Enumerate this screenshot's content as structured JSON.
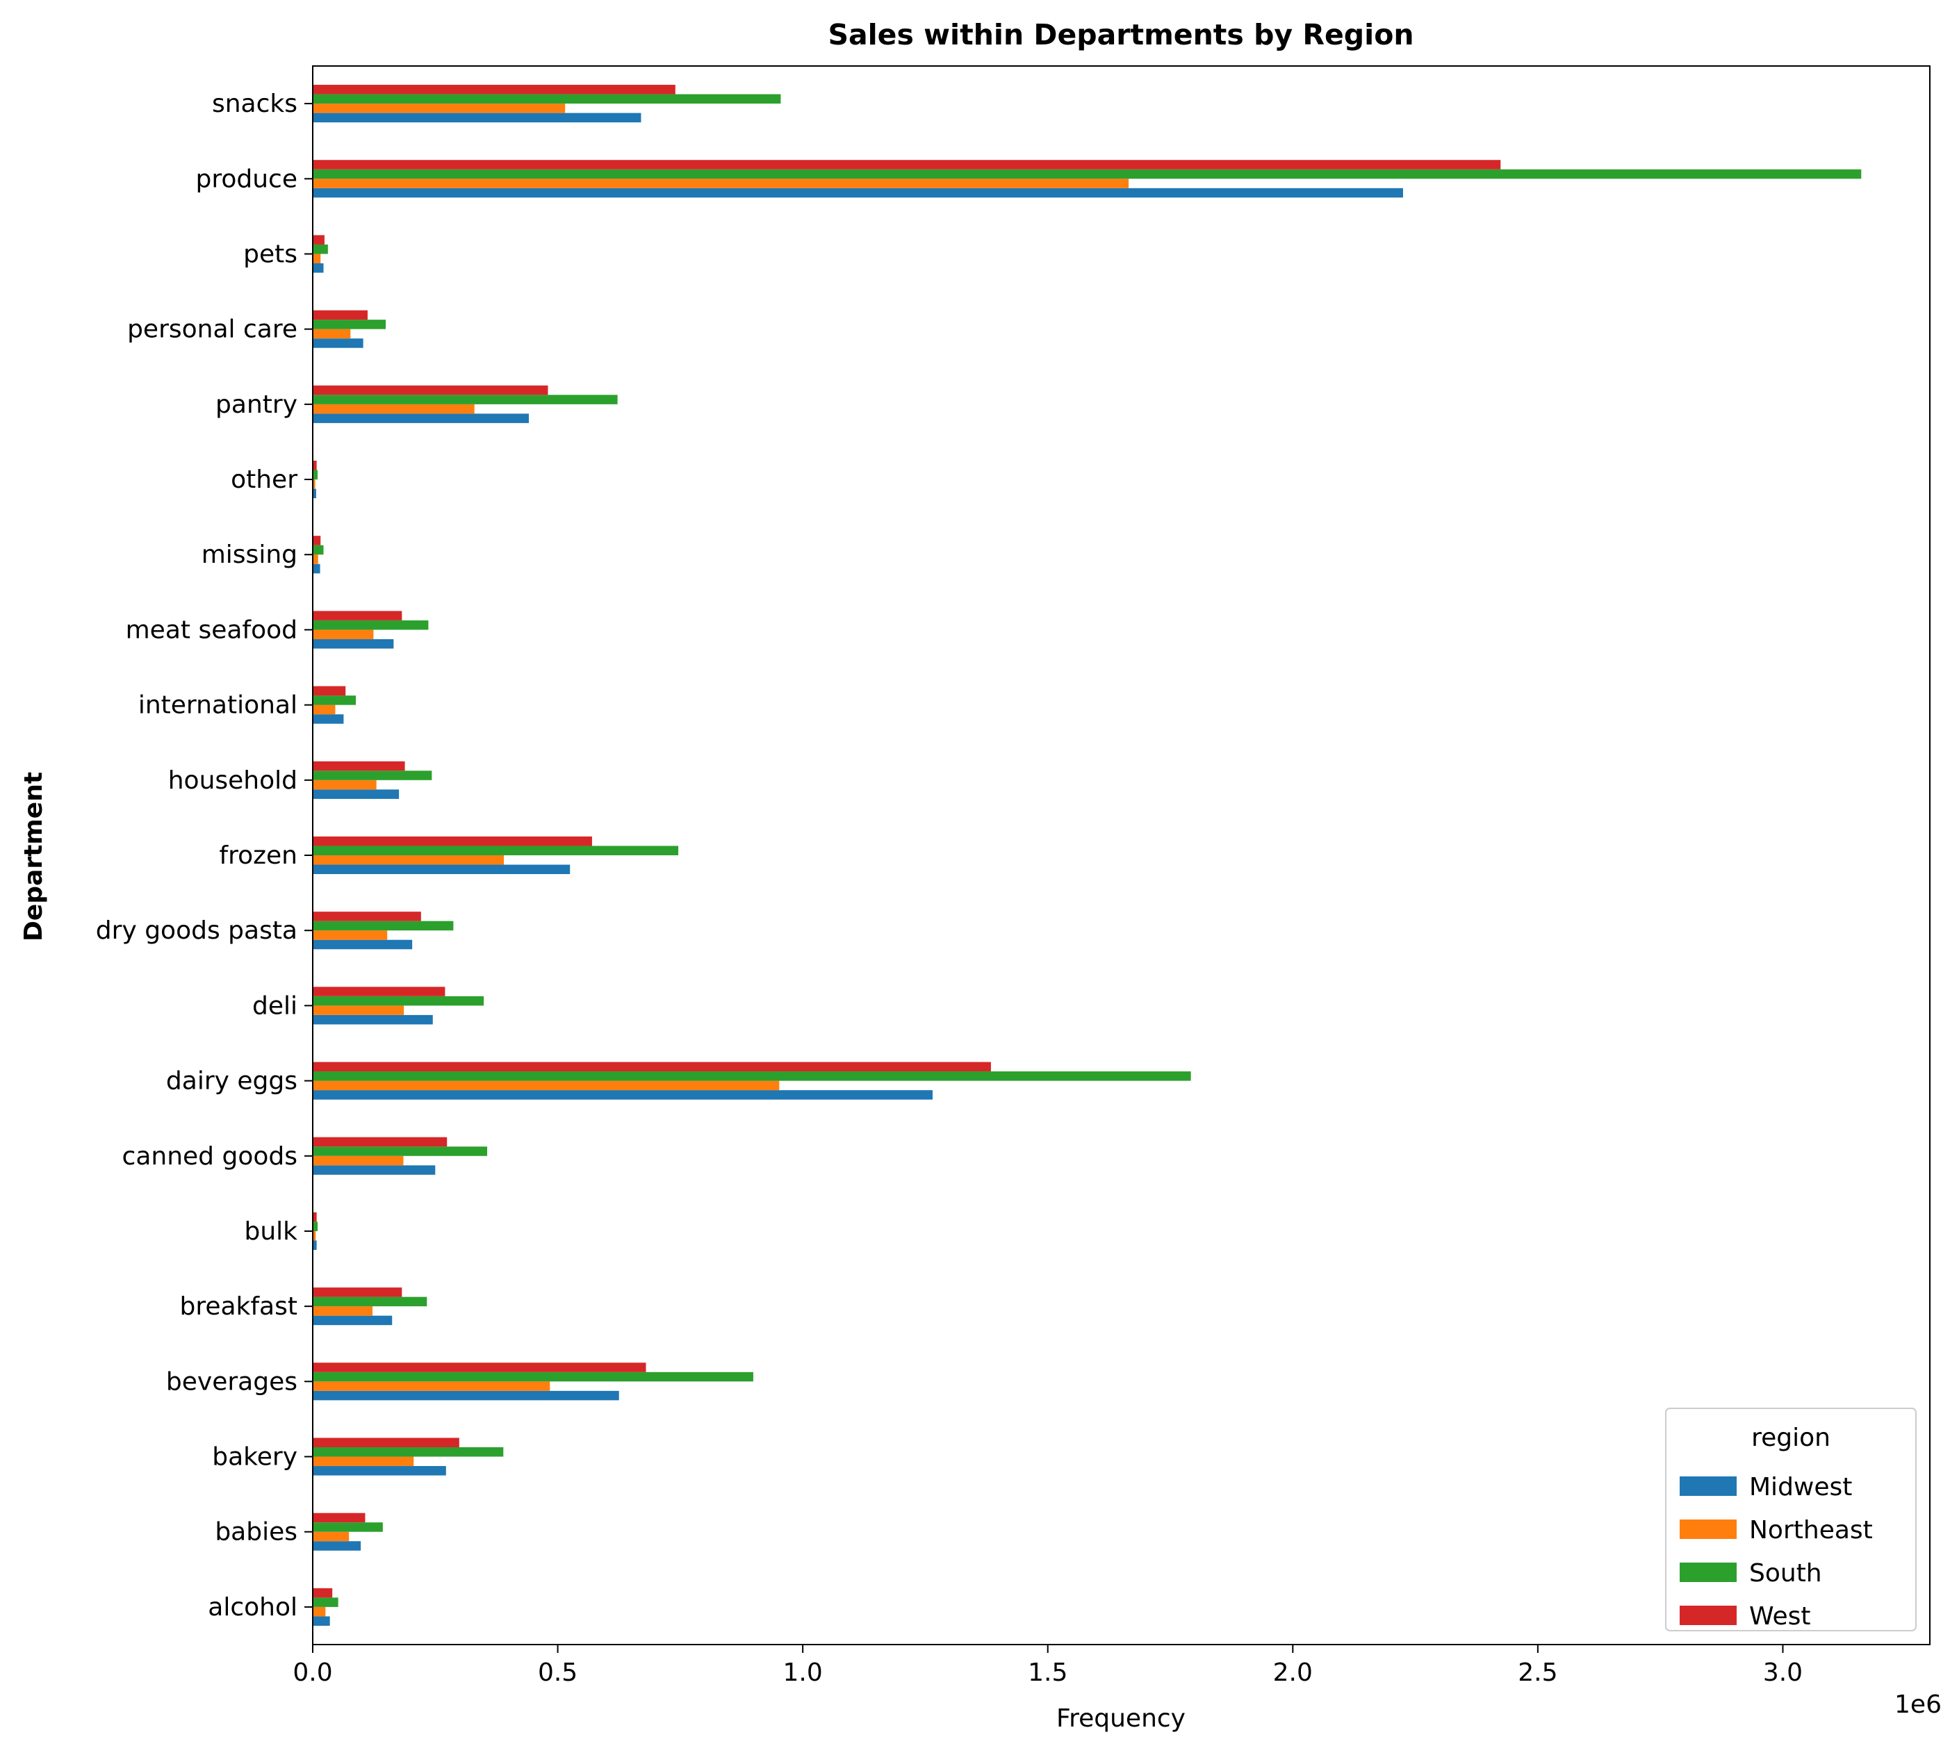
{
  "chart_data": {
    "type": "bar",
    "orientation": "horizontal",
    "title": "Sales within Departments by Region",
    "xlabel": "Frequency",
    "ylabel": "Department",
    "x_offset_label": "1e6",
    "xlim": [
      0,
      3.3
    ],
    "x_ticks": [
      0.0,
      0.5,
      1.0,
      1.5,
      2.0,
      2.5,
      3.0
    ],
    "x_tick_labels": [
      "0.0",
      "0.5",
      "1.0",
      "1.5",
      "2.0",
      "2.5",
      "3.0"
    ],
    "grid": false,
    "legend_title": "region",
    "legend_position": "lower-right",
    "categories": [
      "alcohol",
      "babies",
      "bakery",
      "beverages",
      "breakfast",
      "bulk",
      "canned goods",
      "dairy eggs",
      "deli",
      "dry goods pasta",
      "frozen",
      "household",
      "international",
      "meat seafood",
      "missing",
      "other",
      "pantry",
      "personal care",
      "pets",
      "produce",
      "snacks"
    ],
    "series": [
      {
        "name": "Midwest",
        "color": "#1f77b4",
        "values": [
          0.035,
          0.098,
          0.272,
          0.625,
          0.162,
          0.008,
          0.25,
          1.265,
          0.245,
          0.203,
          0.525,
          0.176,
          0.063,
          0.165,
          0.015,
          0.007,
          0.441,
          0.103,
          0.022,
          2.225,
          0.67
        ]
      },
      {
        "name": "Northeast",
        "color": "#ff7f0e",
        "values": [
          0.026,
          0.074,
          0.206,
          0.484,
          0.122,
          0.006,
          0.185,
          0.952,
          0.186,
          0.152,
          0.39,
          0.13,
          0.046,
          0.124,
          0.011,
          0.005,
          0.33,
          0.077,
          0.016,
          1.665,
          0.515
        ]
      },
      {
        "name": "South",
        "color": "#2ca02c",
        "values": [
          0.052,
          0.143,
          0.389,
          0.899,
          0.233,
          0.01,
          0.356,
          1.792,
          0.349,
          0.287,
          0.746,
          0.243,
          0.088,
          0.236,
          0.022,
          0.01,
          0.622,
          0.149,
          0.031,
          3.16,
          0.955
        ]
      },
      {
        "name": "West",
        "color": "#d62728",
        "values": [
          0.04,
          0.107,
          0.299,
          0.68,
          0.182,
          0.008,
          0.274,
          1.384,
          0.27,
          0.221,
          0.57,
          0.188,
          0.067,
          0.182,
          0.016,
          0.008,
          0.48,
          0.112,
          0.024,
          2.424,
          0.74
        ]
      }
    ]
  }
}
